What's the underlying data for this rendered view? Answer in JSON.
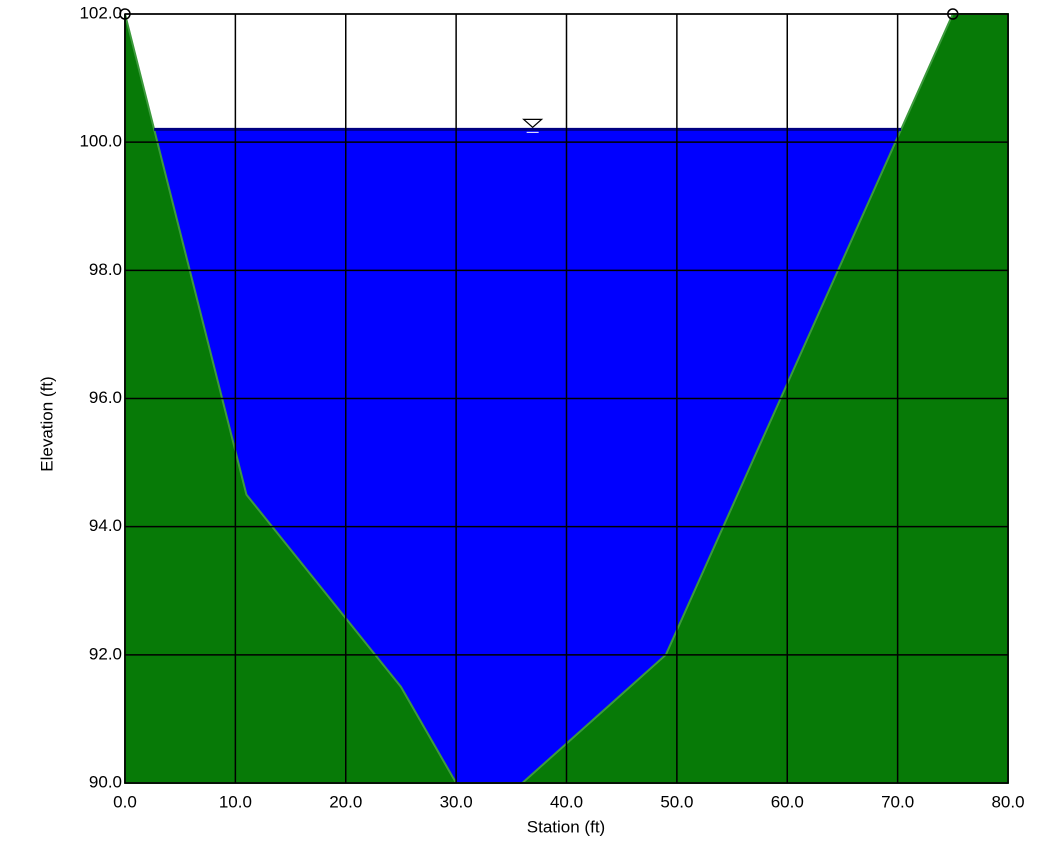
{
  "chart_data": {
    "type": "area",
    "x_label": "Station   (ft)",
    "y_label": "Elevation   (ft)",
    "x": [
      0,
      11,
      25,
      30,
      36,
      49,
      75,
      80
    ],
    "values": [
      102,
      94.5,
      91.5,
      90,
      90,
      92,
      102,
      102
    ],
    "color": "#077a07",
    "water_elevation": 100.2,
    "water_color": "#0000ff",
    "xlim": [
      0,
      80
    ],
    "ylim": [
      90,
      102
    ],
    "xticks": [
      {
        "value": 0,
        "label": "0.0"
      },
      {
        "value": 10,
        "label": "10.0"
      },
      {
        "value": 20,
        "label": "20.0"
      },
      {
        "value": 30,
        "label": "30.0"
      },
      {
        "value": 40,
        "label": "40.0"
      },
      {
        "value": 50,
        "label": "50.0"
      },
      {
        "value": 60,
        "label": "60.0"
      },
      {
        "value": 70,
        "label": "70.0"
      },
      {
        "value": 80,
        "label": "80.0"
      }
    ],
    "yticks": [
      {
        "value": 90,
        "label": "90.0"
      },
      {
        "value": 92,
        "label": "92.0"
      },
      {
        "value": 94,
        "label": "94.0"
      },
      {
        "value": 96,
        "label": "96.0"
      },
      {
        "value": 98,
        "label": "98.0"
      },
      {
        "value": 100,
        "label": "100.0"
      },
      {
        "value": 102,
        "label": "102.0"
      }
    ],
    "grid": true
  }
}
